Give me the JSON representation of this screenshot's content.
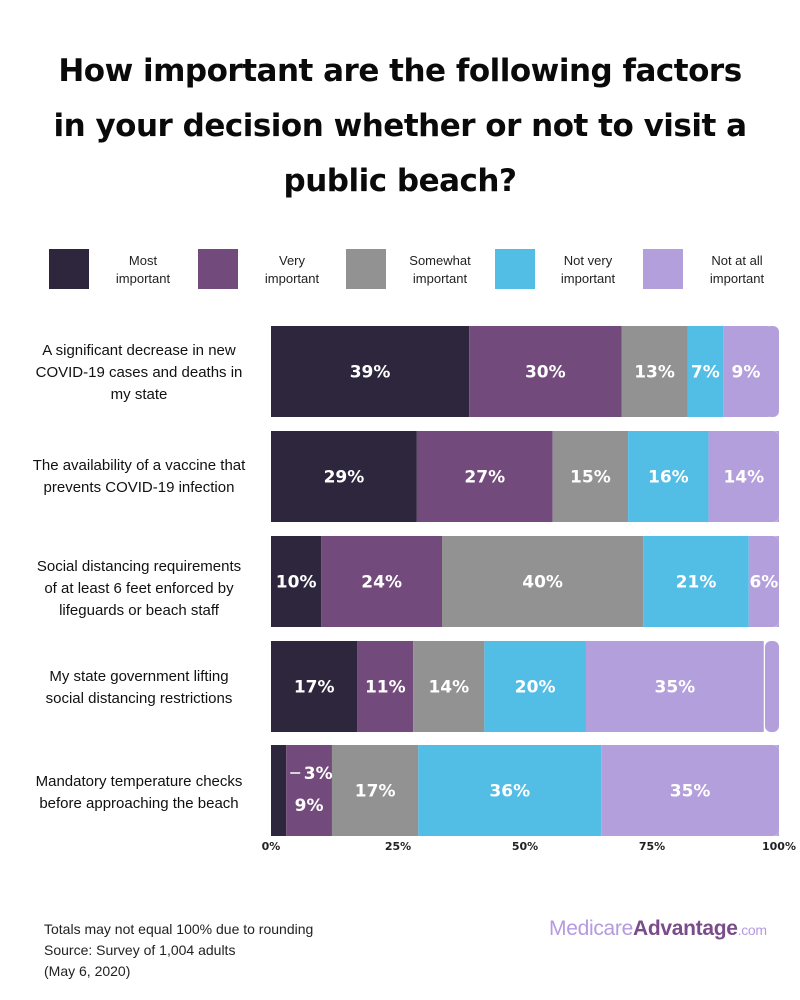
{
  "title_lines": [
    "How important are the following factors",
    "in your decision whether or not to visit a",
    "public beach?"
  ],
  "legend": [
    {
      "line1": "Most",
      "line2": "important",
      "color": "#2d263d"
    },
    {
      "line1": "Very",
      "line2": "important",
      "color": "#734a7c"
    },
    {
      "line1": "Somewhat",
      "line2": "important",
      "color": "#929292"
    },
    {
      "line1": "Not very",
      "line2": "important",
      "color": "#52bde5"
    },
    {
      "line1": "Not at all",
      "line2": "important",
      "color": "#b49fdd"
    }
  ],
  "chart_data": {
    "type": "bar",
    "orientation": "horizontal",
    "stacked": true,
    "title": "How important are the following factors in your decision whether or not to visit a public beach?",
    "categories": [
      [
        "A significant decrease in new",
        "COVID-19 cases and deaths in",
        "my state"
      ],
      [
        "The availability of a vaccine that",
        "prevents COVID-19 infection"
      ],
      [
        "Social distancing requirements",
        "of at least 6 feet enforced by",
        "lifeguards or beach staff"
      ],
      [
        "My state government lifting",
        "social distancing restrictions"
      ],
      [
        "Mandatory temperature checks",
        "before approaching the beach"
      ]
    ],
    "series": [
      {
        "name": "Most important",
        "color": "#2d263d",
        "values": [
          39,
          29,
          10,
          17,
          3
        ]
      },
      {
        "name": "Very important",
        "color": "#734a7c",
        "values": [
          30,
          27,
          24,
          11,
          9
        ]
      },
      {
        "name": "Somewhat important",
        "color": "#929292",
        "values": [
          13,
          15,
          40,
          14,
          17
        ]
      },
      {
        "name": "Not very important",
        "color": "#52bde5",
        "values": [
          7,
          16,
          21,
          20,
          36
        ]
      },
      {
        "name": "Not at all important",
        "color": "#b49fdd",
        "values": [
          9,
          14,
          6,
          35,
          35
        ]
      }
    ],
    "xlim": [
      0,
      100
    ],
    "x_ticks": [
      "0%",
      "25%",
      "50%",
      "75%",
      "100%"
    ],
    "value_suffix": "%",
    "legend_position": "top"
  },
  "footnote": [
    "Totals may not equal 100% due to rounding",
    "Source: Survey of 1,004 adults",
    "(May 6, 2020)"
  ],
  "logo": {
    "part1": "Medicare",
    "part2": "Advantage",
    "part3": ".com"
  }
}
